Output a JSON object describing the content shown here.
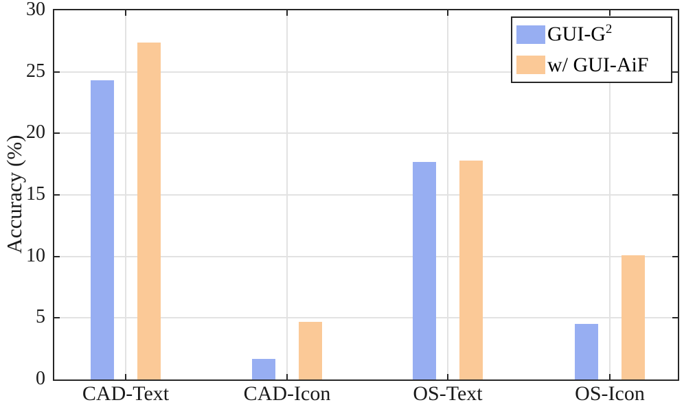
{
  "chart_data": {
    "type": "bar",
    "title": "",
    "categories": [
      "CAD-Text",
      "CAD-Icon",
      "OS-Text",
      "OS-Icon"
    ],
    "series": [
      {
        "name": "GUI-G2",
        "label": "GUI-G",
        "label_superscript": "2",
        "color": "#97AEF2",
        "values": [
          24.3,
          1.7,
          17.7,
          4.5
        ]
      },
      {
        "name": "w/ GUI-AiF",
        "label": "w/ GUI-AiF",
        "label_superscript": "",
        "color": "#FBC997",
        "values": [
          27.4,
          4.7,
          17.8,
          10.1
        ]
      }
    ],
    "xlabel": "",
    "ylabel": "Accuracy (%)",
    "ylim": [
      0,
      30
    ],
    "yticks": [
      0,
      5,
      10,
      15,
      20,
      25,
      30
    ],
    "grid": true,
    "legend_position": "top-right"
  },
  "colors": {
    "background": "#FFFFFF",
    "grid": "#E2E2E2",
    "axis": "#262626",
    "text": "#1A1A1A",
    "series_blue": "#97AEF2",
    "series_orange": "#FBC997"
  }
}
